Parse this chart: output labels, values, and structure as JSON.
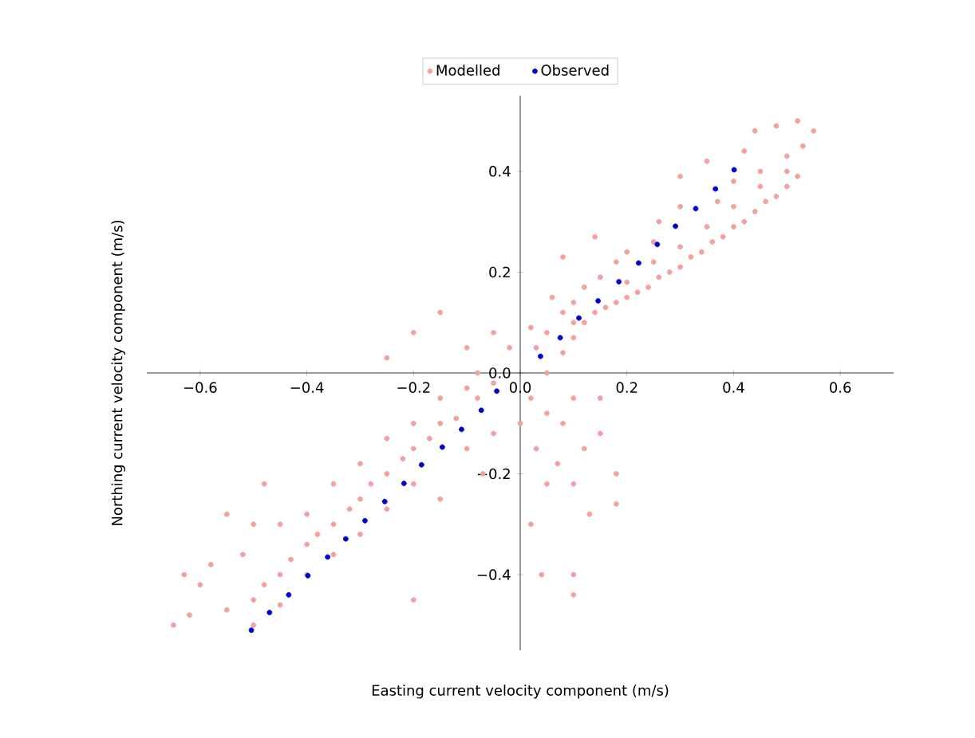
{
  "chart_data": {
    "type": "scatter",
    "xlabel": "Easting current velocity component (m/s)",
    "ylabel": "Northing current velocity component (m/s)",
    "legend": "top",
    "grid": false,
    "xlim": [
      -0.7,
      0.7
    ],
    "ylim": [
      -0.55,
      0.55
    ],
    "xticks": [
      {
        "value": -0.6,
        "label": "−0.6"
      },
      {
        "value": -0.4,
        "label": "−0.4"
      },
      {
        "value": -0.2,
        "label": "−0.2"
      },
      {
        "value": 0,
        "label": "0.0"
      },
      {
        "value": 0.2,
        "label": "0.2"
      },
      {
        "value": 0.4,
        "label": "0.4"
      },
      {
        "value": 0.6,
        "label": "0.6"
      }
    ],
    "yticks": [
      {
        "value": -0.4,
        "label": "−0.4"
      },
      {
        "value": -0.2,
        "label": "−0.2"
      },
      {
        "value": 0,
        "label": "0.0"
      },
      {
        "value": 0.2,
        "label": "0.2"
      },
      {
        "value": 0.4,
        "label": "0.4"
      }
    ],
    "series": [
      {
        "name": "Modelled",
        "color": "#f4a0a0",
        "x": [
          -0.65,
          -0.63,
          -0.62,
          -0.6,
          -0.58,
          -0.55,
          -0.55,
          -0.52,
          -0.5,
          -0.5,
          -0.5,
          -0.48,
          -0.48,
          -0.45,
          -0.45,
          -0.45,
          -0.43,
          -0.4,
          -0.4,
          -0.4,
          -0.38,
          -0.35,
          -0.35,
          -0.35,
          -0.32,
          -0.3,
          -0.3,
          -0.3,
          -0.28,
          -0.25,
          -0.25,
          -0.25,
          -0.25,
          -0.22,
          -0.2,
          -0.2,
          -0.2,
          -0.2,
          -0.2,
          -0.17,
          -0.15,
          -0.15,
          -0.15,
          -0.15,
          -0.12,
          -0.1,
          -0.1,
          -0.1,
          -0.08,
          -0.08,
          -0.07,
          -0.05,
          -0.05,
          -0.05,
          -0.02,
          0.0,
          0.02,
          0.02,
          0.02,
          0.03,
          0.03,
          0.04,
          0.05,
          0.05,
          0.05,
          0.05,
          0.06,
          0.07,
          0.08,
          0.08,
          0.08,
          0.08,
          0.1,
          0.1,
          0.1,
          0.1,
          0.1,
          0.1,
          0.1,
          0.12,
          0.12,
          0.12,
          0.13,
          0.14,
          0.14,
          0.15,
          0.15,
          0.15,
          0.16,
          0.18,
          0.18,
          0.18,
          0.18,
          0.2,
          0.2,
          0.2,
          0.22,
          0.24,
          0.25,
          0.25,
          0.26,
          0.26,
          0.28,
          0.3,
          0.3,
          0.3,
          0.3,
          0.32,
          0.34,
          0.35,
          0.35,
          0.36,
          0.37,
          0.38,
          0.4,
          0.4,
          0.4,
          0.42,
          0.42,
          0.44,
          0.44,
          0.45,
          0.45,
          0.46,
          0.48,
          0.48,
          0.5,
          0.5,
          0.5,
          0.52,
          0.52,
          0.53,
          0.55
        ],
        "values": [
          -0.5,
          -0.4,
          -0.48,
          -0.42,
          -0.38,
          -0.47,
          -0.28,
          -0.36,
          -0.45,
          -0.3,
          -0.5,
          -0.42,
          -0.22,
          -0.4,
          -0.3,
          -0.46,
          -0.37,
          -0.34,
          -0.28,
          -0.4,
          -0.32,
          -0.3,
          -0.22,
          -0.36,
          -0.27,
          -0.25,
          -0.18,
          -0.32,
          -0.22,
          -0.2,
          -0.13,
          -0.27,
          0.03,
          -0.17,
          -0.15,
          -0.1,
          -0.22,
          -0.45,
          0.08,
          -0.13,
          -0.1,
          -0.05,
          -0.25,
          0.12,
          -0.09,
          -0.03,
          -0.15,
          0.05,
          -0.05,
          0.0,
          -0.2,
          -0.02,
          -0.12,
          0.08,
          0.05,
          -0.1,
          0.09,
          -0.05,
          -0.3,
          0.05,
          -0.15,
          -0.4,
          0.08,
          0.0,
          -0.08,
          -0.22,
          0.15,
          -0.18,
          0.12,
          0.04,
          0.23,
          -0.1,
          0.14,
          0.07,
          0.1,
          -0.05,
          -0.22,
          -0.4,
          -0.44,
          0.17,
          0.1,
          -0.15,
          -0.28,
          0.27,
          0.12,
          0.19,
          -0.12,
          -0.05,
          0.13,
          0.22,
          0.14,
          -0.2,
          -0.26,
          0.24,
          0.15,
          0.18,
          0.16,
          0.17,
          0.26,
          0.22,
          0.19,
          0.3,
          0.2,
          0.33,
          0.21,
          0.25,
          0.39,
          0.23,
          0.24,
          0.29,
          0.42,
          0.26,
          0.34,
          0.27,
          0.38,
          0.29,
          0.33,
          0.44,
          0.3,
          0.32,
          0.48,
          0.4,
          0.37,
          0.34,
          0.49,
          0.35,
          0.43,
          0.37,
          0.4,
          0.39,
          0.5,
          0.45,
          0.48
        ]
      },
      {
        "name": "Observed",
        "color": "#0000cc",
        "x": [
          -0.504,
          -0.47,
          -0.434,
          -0.398,
          -0.361,
          -0.327,
          -0.291,
          -0.254,
          -0.218,
          -0.185,
          -0.146,
          -0.11,
          -0.073,
          -0.044,
          0.038,
          0.075,
          0.11,
          0.146,
          0.185,
          0.222,
          0.257,
          0.291,
          0.329,
          0.366,
          0.401
        ],
        "values": [
          -0.51,
          -0.475,
          -0.44,
          -0.402,
          -0.365,
          -0.329,
          -0.293,
          -0.255,
          -0.219,
          -0.182,
          -0.147,
          -0.112,
          -0.074,
          -0.036,
          0.033,
          0.07,
          0.109,
          0.143,
          0.181,
          0.218,
          0.255,
          0.291,
          0.326,
          0.365,
          0.403
        ]
      }
    ]
  }
}
